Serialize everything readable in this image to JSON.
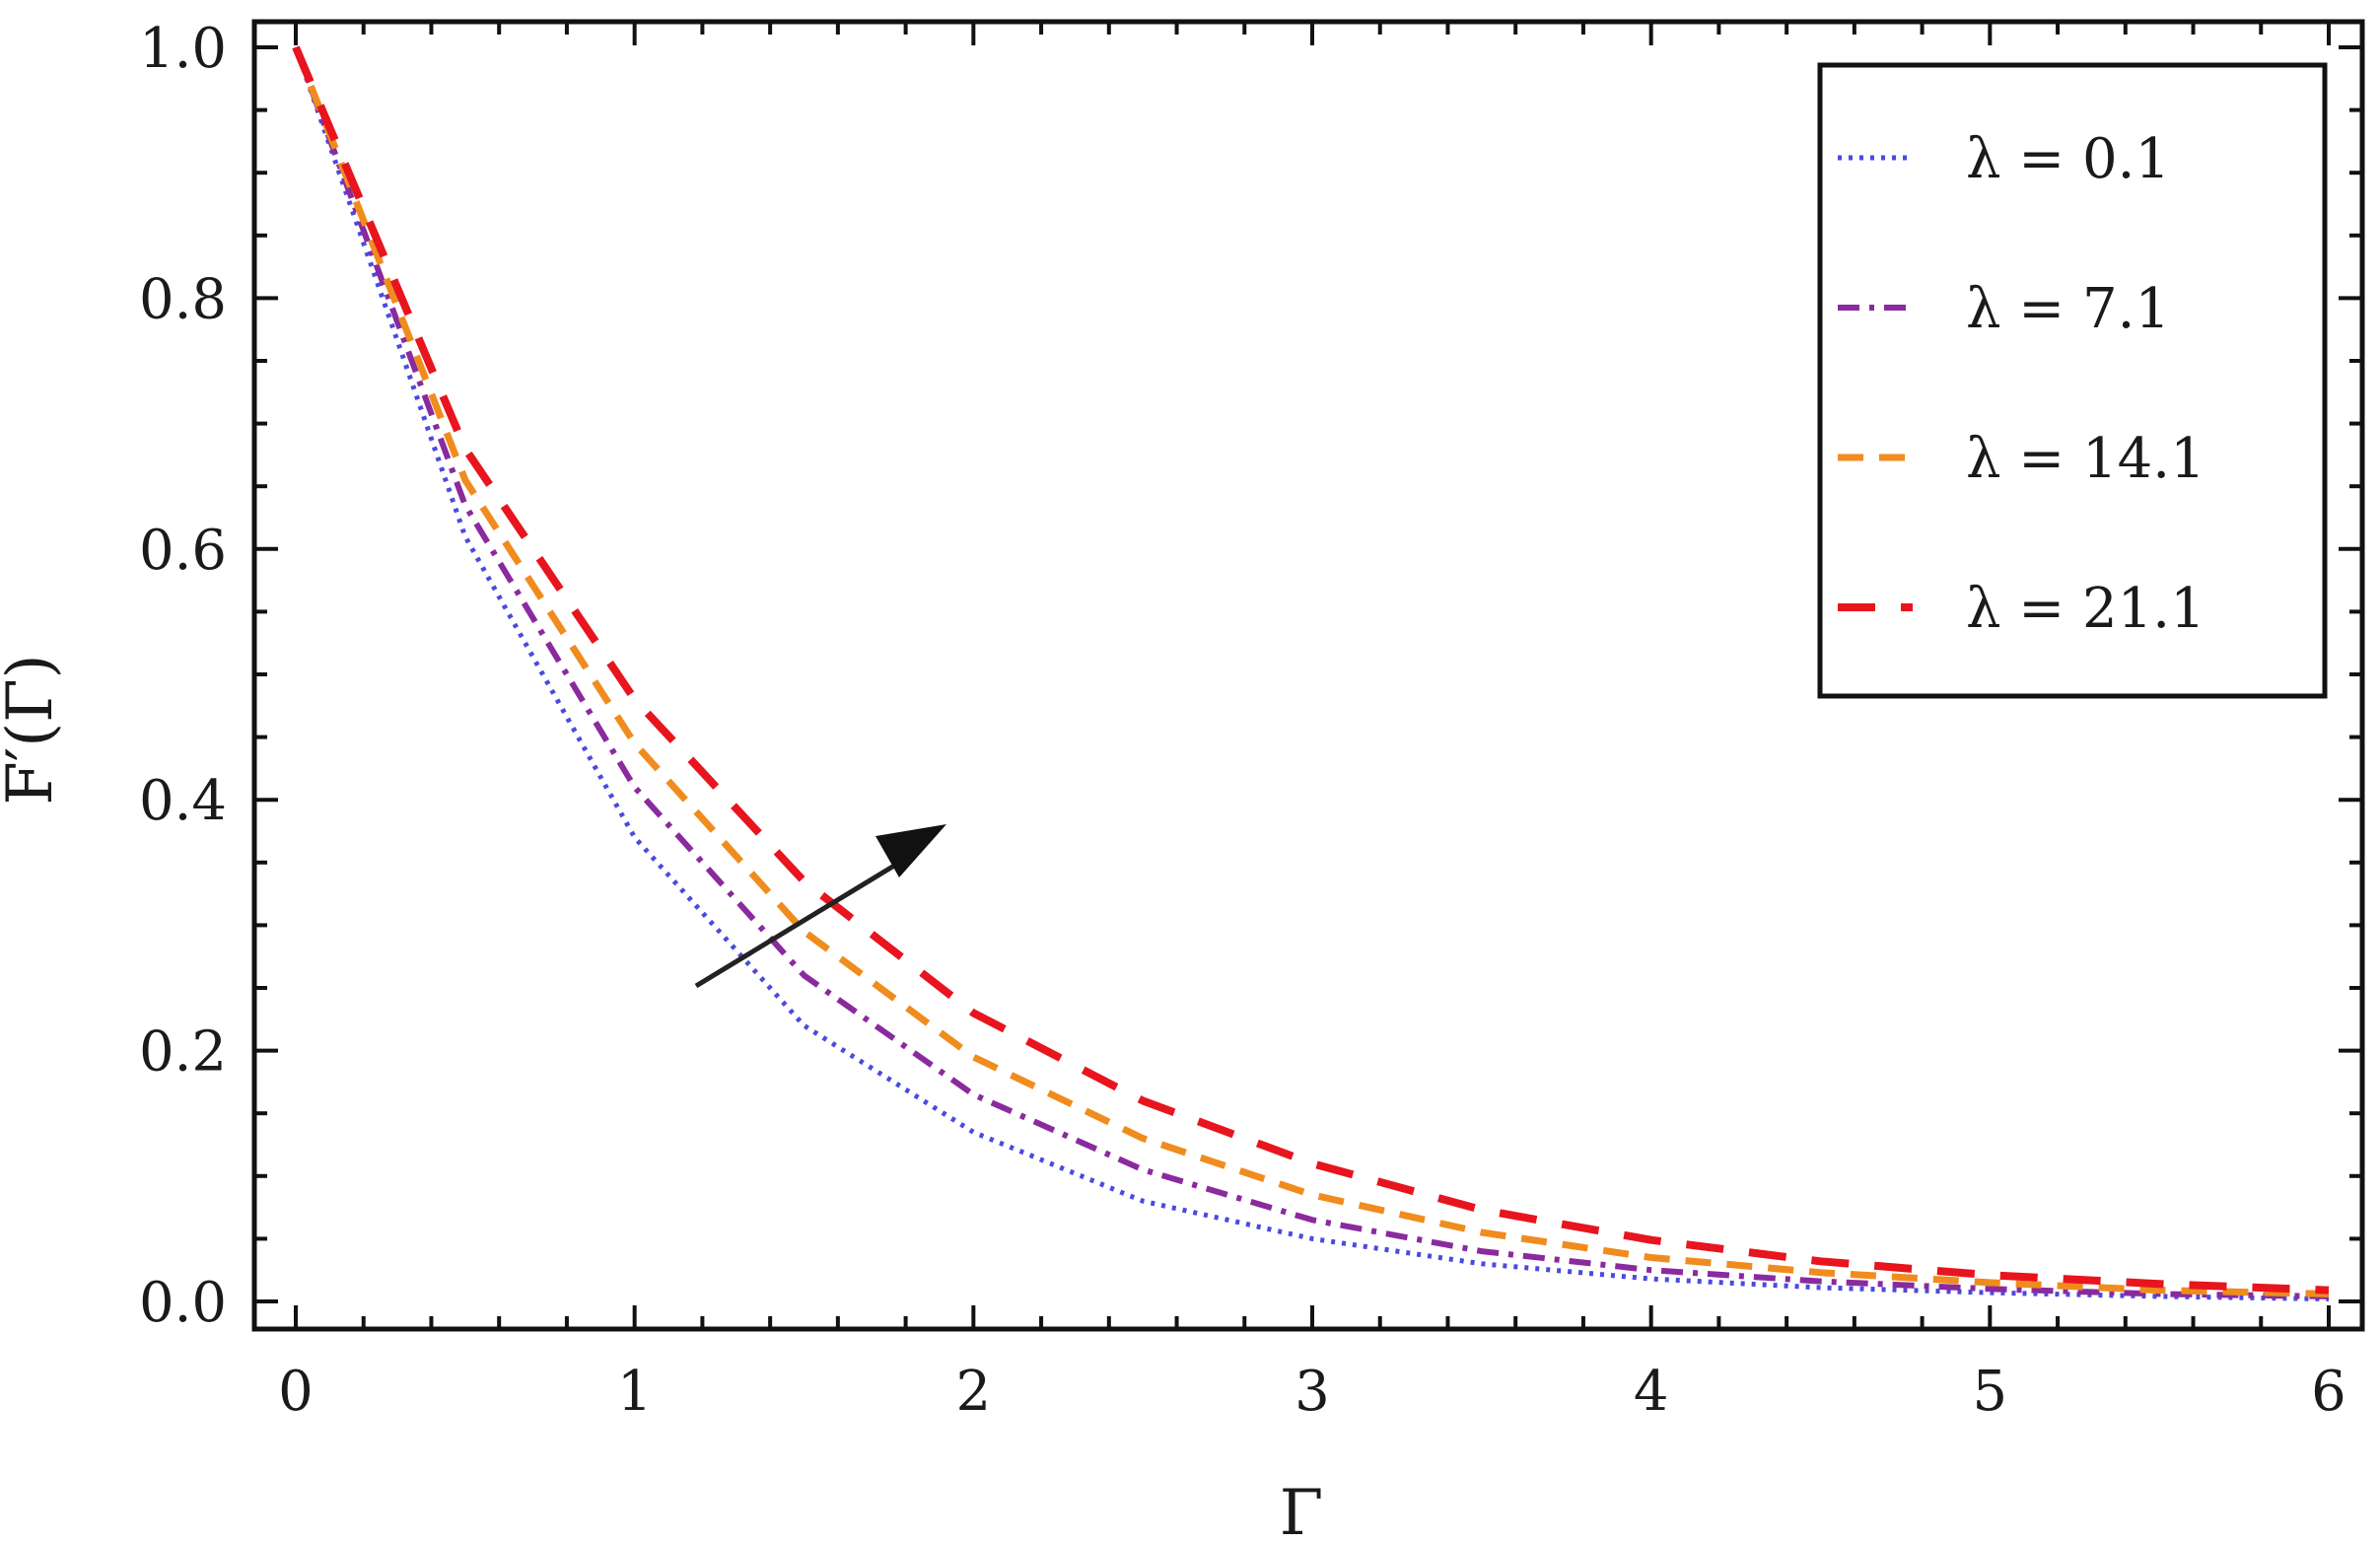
{
  "chart_data": {
    "type": "line",
    "xlabel": "Γ",
    "ylabel": "F′(Γ)",
    "xlim": [
      0,
      6
    ],
    "ylim": [
      0,
      1
    ],
    "x_ticks": [
      "0",
      "1",
      "2",
      "3",
      "4",
      "5",
      "6"
    ],
    "y_ticks": [
      "0.0",
      "0.2",
      "0.4",
      "0.6",
      "0.8",
      "1.0"
    ],
    "grid": false,
    "legend_position": "top-right",
    "annotation": "arrow indicating increasing λ",
    "x": [
      0,
      0.5,
      1,
      1.5,
      2,
      2.5,
      3,
      3.5,
      4,
      4.5,
      5,
      5.5,
      6
    ],
    "series": [
      {
        "name": "λ = 0.1",
        "color": "#4a4ae0",
        "dash": "dotted",
        "values": [
          1.0,
          0.61,
          0.37,
          0.22,
          0.135,
          0.08,
          0.05,
          0.03,
          0.018,
          0.011,
          0.007,
          0.004,
          0.002
        ]
      },
      {
        "name": "λ = 7.1",
        "color": "#8a2a9e",
        "dash": "dashdot",
        "values": [
          1.0,
          0.635,
          0.41,
          0.26,
          0.165,
          0.105,
          0.065,
          0.04,
          0.025,
          0.016,
          0.01,
          0.006,
          0.004
        ]
      },
      {
        "name": "λ = 14.1",
        "color": "#f08c1e",
        "dash": "dashed",
        "values": [
          1.0,
          0.655,
          0.445,
          0.295,
          0.195,
          0.13,
          0.085,
          0.055,
          0.035,
          0.023,
          0.015,
          0.009,
          0.006
        ]
      },
      {
        "name": "λ = 21.1",
        "color": "#e8141e",
        "dash": "longdash",
        "values": [
          1.0,
          0.68,
          0.48,
          0.335,
          0.23,
          0.16,
          0.11,
          0.073,
          0.049,
          0.032,
          0.021,
          0.014,
          0.009
        ]
      }
    ]
  }
}
